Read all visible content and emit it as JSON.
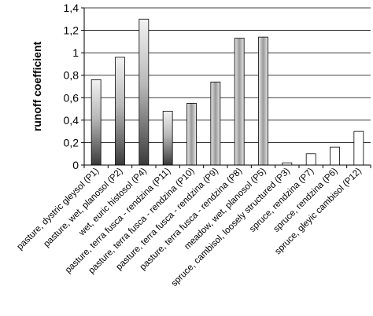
{
  "chart_data": {
    "type": "bar",
    "title": "",
    "xlabel": "",
    "ylabel": "runoff coefficient",
    "ylim": [
      0,
      1.4
    ],
    "yticks": [
      "0",
      "0,2",
      "0,4",
      "0,6",
      "0,8",
      "1",
      "1,2",
      "1,4"
    ],
    "grid": true,
    "categories": [
      "pasture, dystric gleysol (P1)",
      "pasture, wet, planosol (P2)",
      "wet, euric histosol (P4)",
      "pasture, terra fusca - rendzina (P11)",
      "pasture, terra fusca - rendzina (P10)",
      "pasture, terra fusca - rendzina (P9)",
      "pasture, terra fusca - rendzina (P8)",
      "meadow, wet, planosol (P5)",
      "spruce, cambisol, loosely structured (P3)",
      "spruce, rendzina (P7)",
      "spruce, rendzina (P6)",
      "spruce, gleyic cambisol (P12)"
    ],
    "values": [
      0.76,
      0.96,
      1.3,
      0.48,
      0.55,
      0.74,
      1.13,
      1.14,
      0.02,
      0.1,
      0.16,
      0.3
    ],
    "bar_fills": [
      "dark-gradient",
      "dark-gradient",
      "dark-gradient",
      "dark-gradient",
      "medium-gradient",
      "medium-gradient",
      "medium-gradient",
      "medium-gradient",
      "white",
      "white",
      "white",
      "white"
    ]
  }
}
